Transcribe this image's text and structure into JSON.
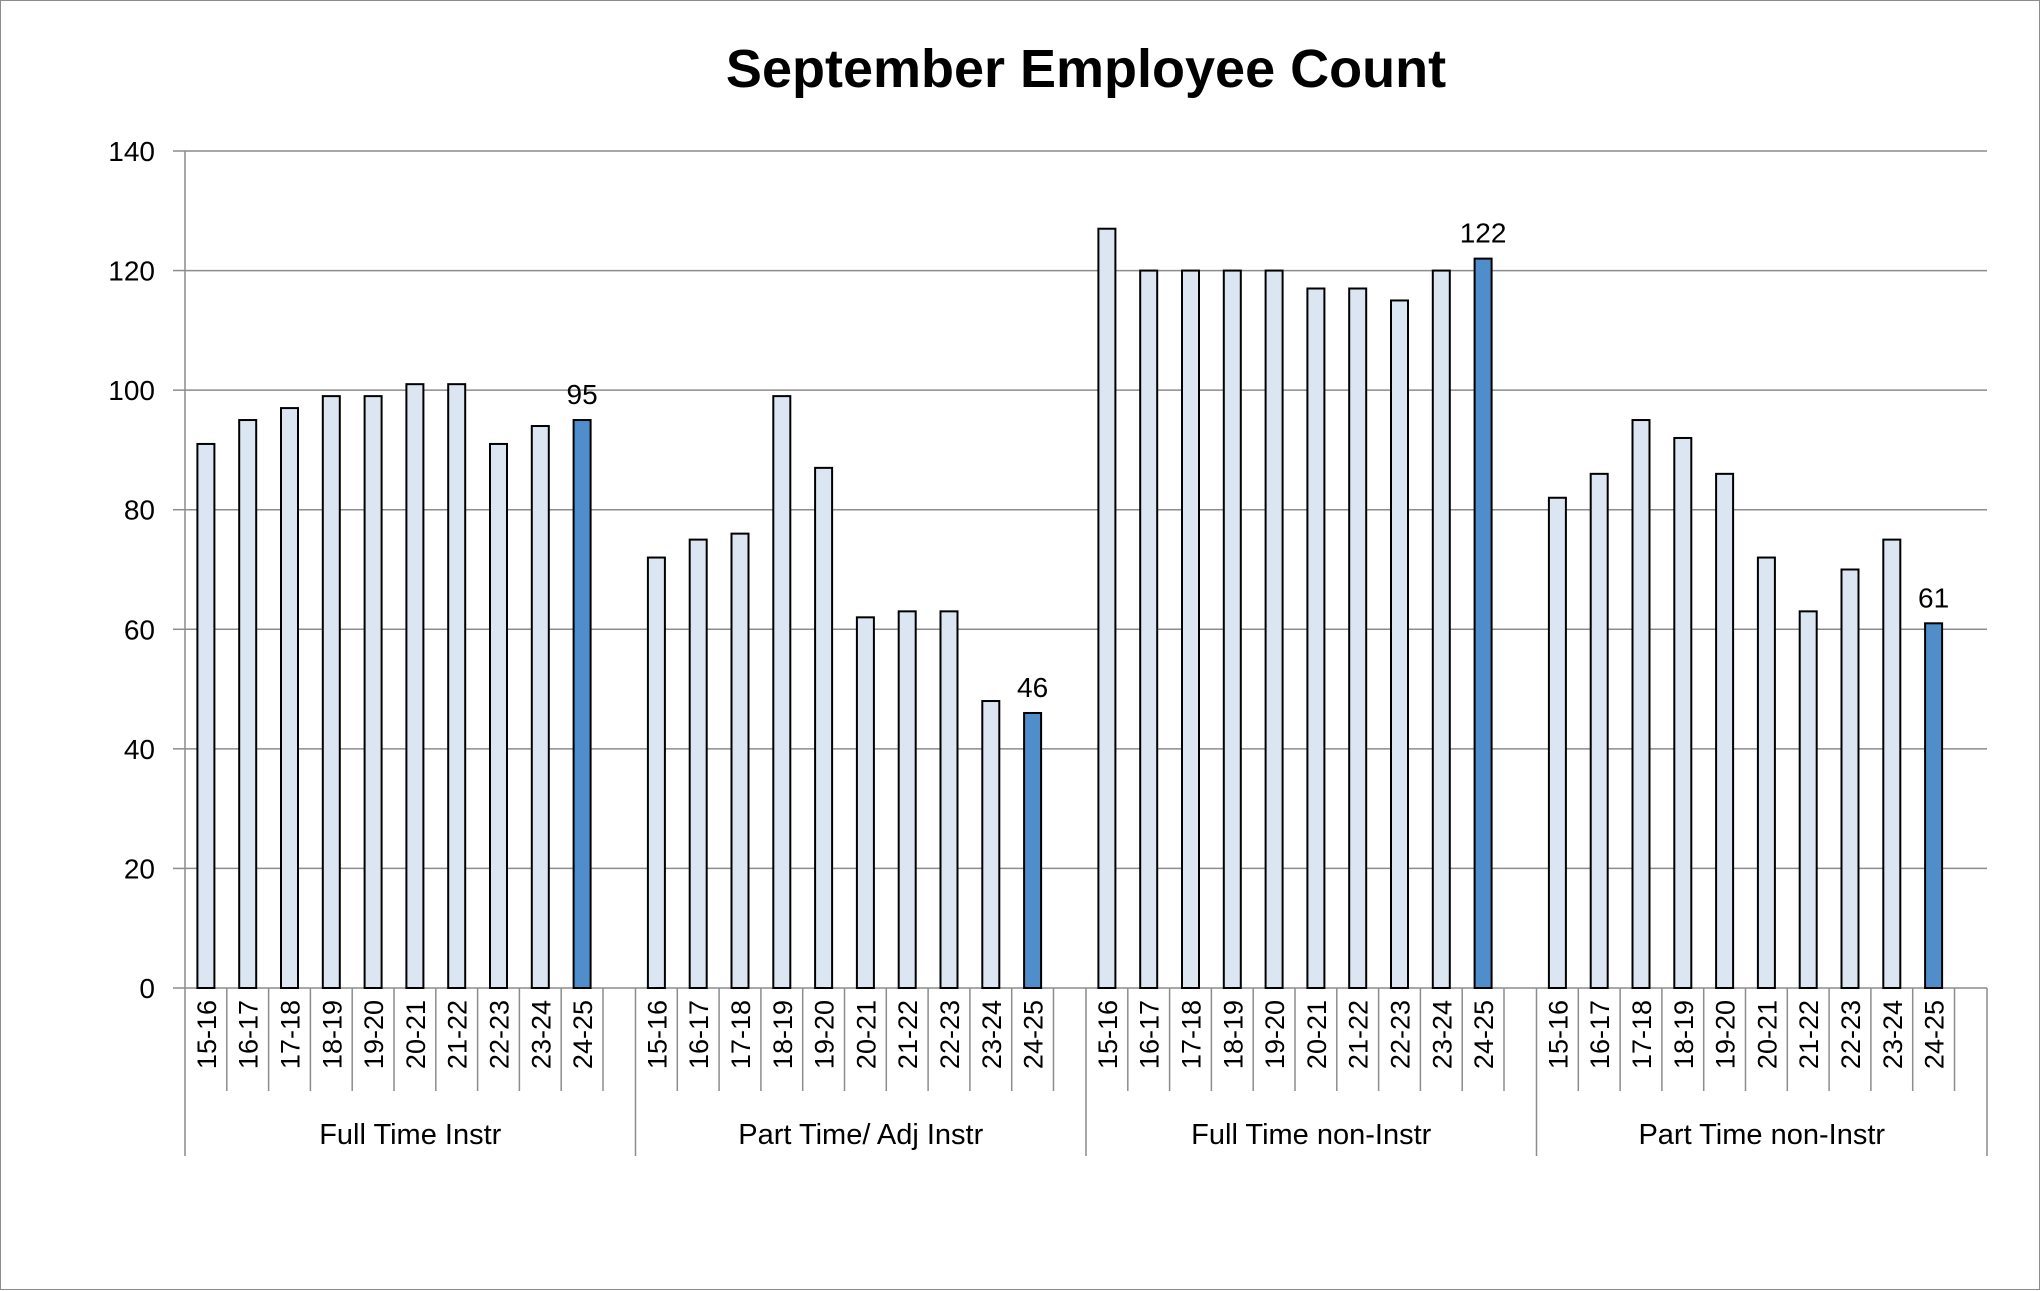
{
  "chart_data": {
    "type": "bar",
    "title": "September Employee Count",
    "xlabel": "",
    "ylabel": "",
    "ylim": [
      0,
      140
    ],
    "yticks": [
      0,
      20,
      40,
      60,
      80,
      100,
      120,
      140
    ],
    "grid": true,
    "legend": "none",
    "colors": {
      "regular": "#dce6f2",
      "highlight": "#4f8ecb",
      "outline": "#000000",
      "grid": "#8c8c8c"
    },
    "groups": [
      {
        "name": "Full Time Instr",
        "categories": [
          "15-16",
          "16-17",
          "17-18",
          "18-19",
          "19-20",
          "20-21",
          "21-22",
          "22-23",
          "23-24",
          "24-25"
        ],
        "values": [
          91,
          95,
          97,
          99,
          99,
          101,
          101,
          91,
          94,
          95
        ],
        "highlight_index": 9,
        "label": "95"
      },
      {
        "name": "Part Time/ Adj Instr",
        "categories": [
          "15-16",
          "16-17",
          "17-18",
          "18-19",
          "19-20",
          "20-21",
          "21-22",
          "22-23",
          "23-24",
          "24-25"
        ],
        "values": [
          72,
          75,
          76,
          99,
          87,
          62,
          63,
          63,
          48,
          46
        ],
        "highlight_index": 9,
        "label": "46"
      },
      {
        "name": "Full Time non-Instr",
        "categories": [
          "15-16",
          "16-17",
          "17-18",
          "18-19",
          "19-20",
          "20-21",
          "21-22",
          "22-23",
          "23-24",
          "24-25"
        ],
        "values": [
          127,
          120,
          120,
          120,
          120,
          117,
          117,
          115,
          120,
          122
        ],
        "highlight_index": 9,
        "label": "122"
      },
      {
        "name": "Part Time non-Instr",
        "categories": [
          "15-16",
          "16-17",
          "17-18",
          "18-19",
          "19-20",
          "20-21",
          "21-22",
          "22-23",
          "23-24",
          "24-25"
        ],
        "values": [
          82,
          86,
          95,
          92,
          86,
          72,
          63,
          70,
          75,
          61
        ],
        "highlight_index": 9,
        "label": "61"
      }
    ]
  }
}
